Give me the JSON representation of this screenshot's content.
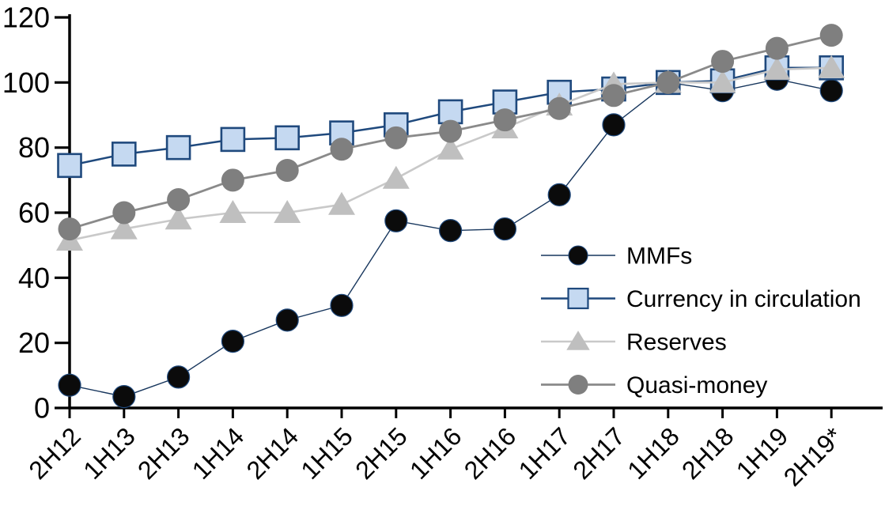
{
  "chart_data": {
    "type": "line",
    "title": "",
    "xlabel": "",
    "ylabel": "",
    "ylim": [
      0,
      120
    ],
    "yticks": [
      0,
      20,
      40,
      60,
      80,
      100,
      120
    ],
    "grid": false,
    "legend_position": "inside-right",
    "categories": [
      "2H12",
      "1H13",
      "2H13",
      "1H14",
      "2H14",
      "1H15",
      "2H15",
      "1H16",
      "2H16",
      "1H17",
      "2H17",
      "1H18",
      "2H18",
      "1H19",
      "2H19*"
    ],
    "series": [
      {
        "name": "MMFs",
        "slug": "mmfs",
        "marker": "circle",
        "marker_fill": "#0b0b0b",
        "marker_stroke": "#1f497d",
        "marker_stroke_width": 1.2,
        "marker_size": 14,
        "line_color": "#17365d",
        "line_width": 1.4,
        "values": [
          7,
          3.5,
          9.5,
          20.5,
          27,
          31.5,
          57.5,
          54.5,
          55,
          65.5,
          87,
          100,
          97.5,
          101,
          97.5
        ]
      },
      {
        "name": "Currency in circulation",
        "slug": "currency-in-circulation",
        "marker": "square",
        "marker_fill": "#c5d9f1",
        "marker_stroke": "#1f497d",
        "marker_stroke_width": 2.6,
        "marker_size": 14.5,
        "line_color": "#1f497d",
        "line_width": 2.5,
        "values": [
          74.5,
          78,
          80,
          82.5,
          83,
          84.5,
          87,
          91,
          94,
          97,
          98,
          100,
          100.5,
          104.5,
          104.5
        ]
      },
      {
        "name": "Reserves",
        "slug": "reserves",
        "marker": "triangle",
        "marker_fill": "#bfbfbf",
        "marker_stroke": "#bfbfbf",
        "marker_stroke_width": 0,
        "marker_size": 16,
        "line_color": "#c9c9c9",
        "line_width": 2.6,
        "values": [
          51.5,
          55,
          58,
          60,
          60,
          62.5,
          70.5,
          79.5,
          86,
          93,
          99.5,
          100,
          100,
          104,
          104.5
        ]
      },
      {
        "name": "Quasi-money",
        "slug": "quasi-money",
        "marker": "circle",
        "marker_fill": "#7f7f7f",
        "marker_stroke": "#7f7f7f",
        "marker_stroke_width": 0,
        "marker_size": 14.5,
        "line_color": "#8a8a8a",
        "line_width": 2.8,
        "values": [
          55,
          60,
          64,
          70,
          73,
          79.5,
          83,
          85,
          88.5,
          92,
          96,
          100,
          106.5,
          110.5,
          114.5
        ]
      }
    ]
  },
  "legend": {
    "items": [
      "MMFs",
      "Currency in circulation",
      "Reserves",
      "Quasi-money"
    ]
  },
  "colors": {
    "axis": "#000000",
    "text": "#000000",
    "background": "#ffffff"
  }
}
